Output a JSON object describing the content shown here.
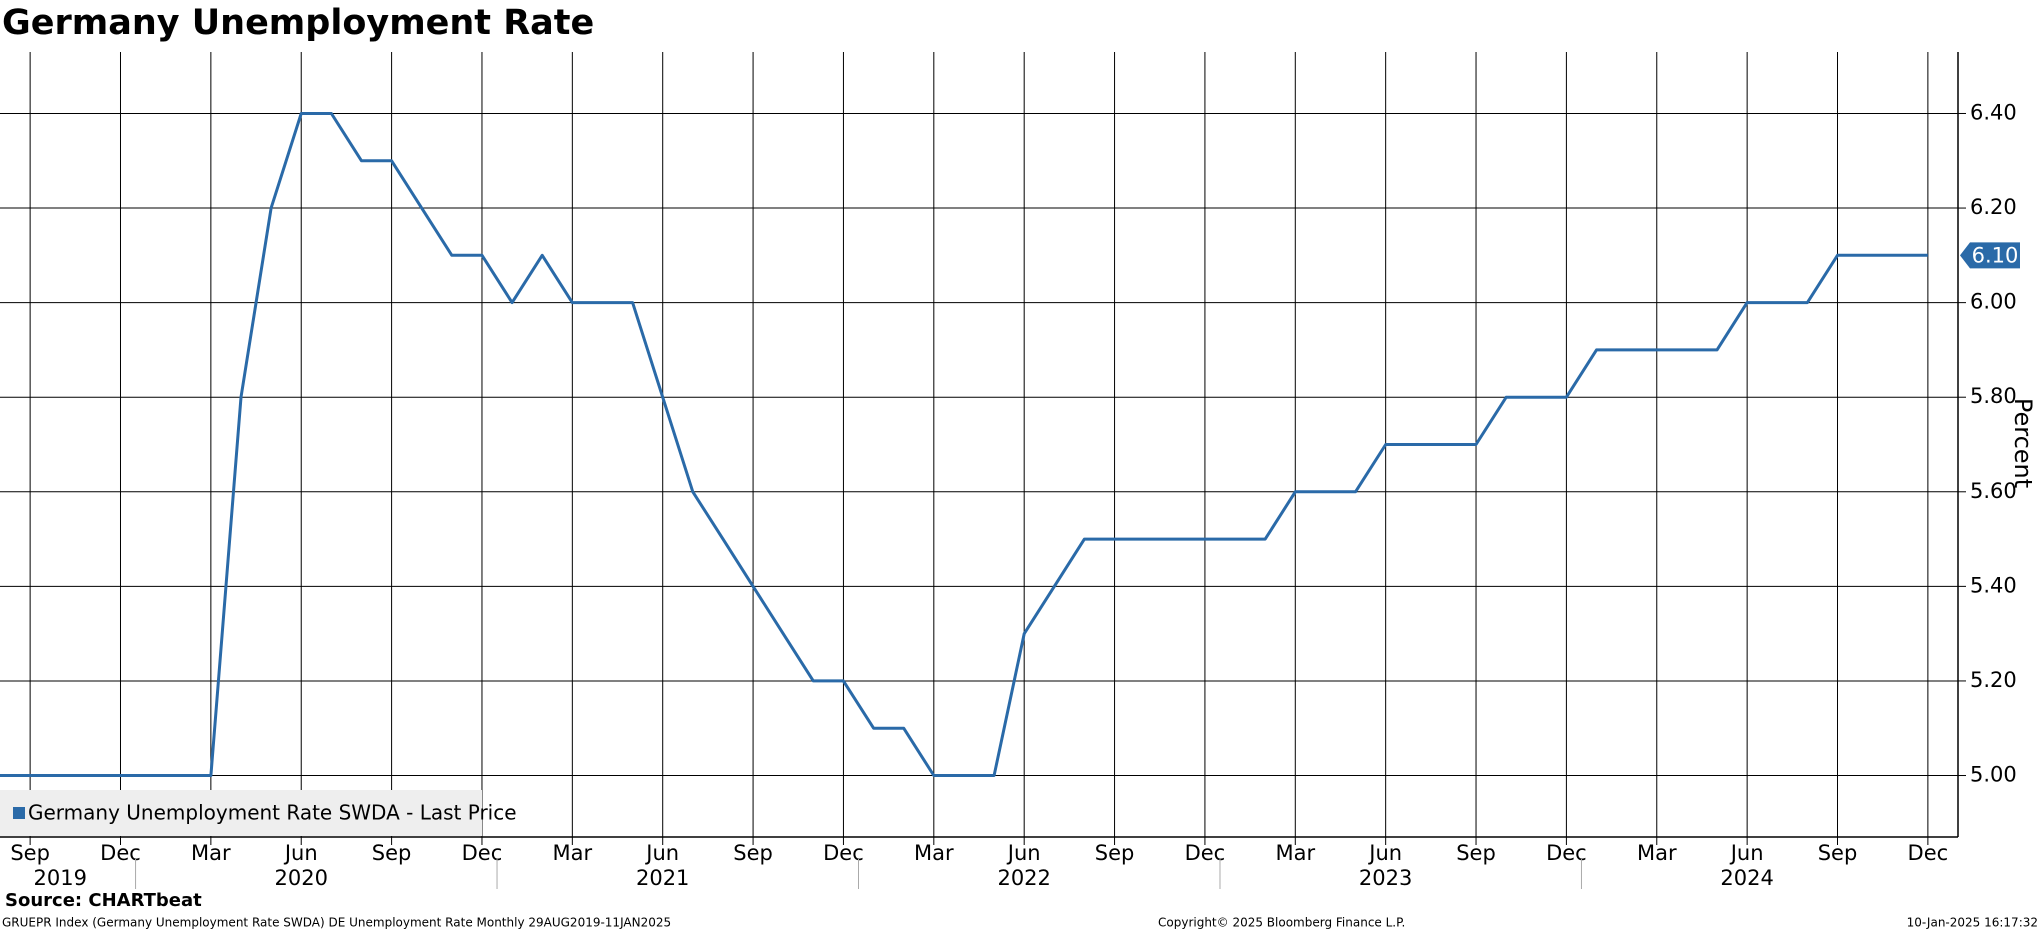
{
  "chart_data": {
    "type": "line",
    "title": "Germany Unemployment Rate",
    "y_axis_label": "Percent",
    "x": [
      "2019-08",
      "2019-09",
      "2019-10",
      "2019-11",
      "2019-12",
      "2020-01",
      "2020-02",
      "2020-03",
      "2020-04",
      "2020-05",
      "2020-06",
      "2020-07",
      "2020-08",
      "2020-09",
      "2020-10",
      "2020-11",
      "2020-12",
      "2021-01",
      "2021-02",
      "2021-03",
      "2021-04",
      "2021-05",
      "2021-06",
      "2021-07",
      "2021-08",
      "2021-09",
      "2021-10",
      "2021-11",
      "2021-12",
      "2022-01",
      "2022-02",
      "2022-03",
      "2022-04",
      "2022-05",
      "2022-06",
      "2022-07",
      "2022-08",
      "2022-09",
      "2022-10",
      "2022-11",
      "2022-12",
      "2023-01",
      "2023-02",
      "2023-03",
      "2023-04",
      "2023-05",
      "2023-06",
      "2023-07",
      "2023-08",
      "2023-09",
      "2023-10",
      "2023-11",
      "2023-12",
      "2024-01",
      "2024-02",
      "2024-03",
      "2024-04",
      "2024-05",
      "2024-06",
      "2024-07",
      "2024-08",
      "2024-09",
      "2024-10",
      "2024-11",
      "2024-12"
    ],
    "series": [
      {
        "name": "Germany Unemployment Rate SWDA - Last Price",
        "color": "#2a6aa8",
        "values": [
          5.0,
          5.0,
          5.0,
          5.0,
          5.0,
          5.0,
          5.0,
          5.0,
          5.8,
          6.2,
          6.4,
          6.4,
          6.3,
          6.3,
          6.2,
          6.1,
          6.1,
          6.0,
          6.1,
          6.0,
          6.0,
          6.0,
          5.8,
          5.6,
          5.5,
          5.4,
          5.3,
          5.2,
          5.2,
          5.1,
          5.1,
          5.0,
          5.0,
          5.0,
          5.3,
          5.4,
          5.5,
          5.5,
          5.5,
          5.5,
          5.5,
          5.5,
          5.5,
          5.6,
          5.6,
          5.6,
          5.7,
          5.7,
          5.7,
          5.7,
          5.8,
          5.8,
          5.8,
          5.9,
          5.9,
          5.9,
          5.9,
          5.9,
          6.0,
          6.0,
          6.0,
          6.1,
          6.1,
          6.1,
          6.1
        ]
      }
    ],
    "last_price_label": "6.10",
    "xlim": [
      "2019-08",
      "2025-01"
    ],
    "ylim": [
      4.87,
      6.53
    ],
    "xticks": [
      {
        "value": "2019-09",
        "label": "Sep"
      },
      {
        "value": "2019-12",
        "label": "Dec"
      },
      {
        "value": "2020-03",
        "label": "Mar"
      },
      {
        "value": "2020-06",
        "label": "Jun"
      },
      {
        "value": "2020-09",
        "label": "Sep"
      },
      {
        "value": "2020-12",
        "label": "Dec"
      },
      {
        "value": "2021-03",
        "label": "Mar"
      },
      {
        "value": "2021-06",
        "label": "Jun"
      },
      {
        "value": "2021-09",
        "label": "Sep"
      },
      {
        "value": "2021-12",
        "label": "Dec"
      },
      {
        "value": "2022-03",
        "label": "Mar"
      },
      {
        "value": "2022-06",
        "label": "Jun"
      },
      {
        "value": "2022-09",
        "label": "Sep"
      },
      {
        "value": "2022-12",
        "label": "Dec"
      },
      {
        "value": "2023-03",
        "label": "Mar"
      },
      {
        "value": "2023-06",
        "label": "Jun"
      },
      {
        "value": "2023-09",
        "label": "Sep"
      },
      {
        "value": "2023-12",
        "label": "Dec"
      },
      {
        "value": "2024-03",
        "label": "Mar"
      },
      {
        "value": "2024-06",
        "label": "Jun"
      },
      {
        "value": "2024-09",
        "label": "Sep"
      },
      {
        "value": "2024-12",
        "label": "Dec"
      }
    ],
    "year_labels": [
      {
        "value": "2019-10",
        "label": "2019"
      },
      {
        "value": "2020-06",
        "label": "2020"
      },
      {
        "value": "2021-06",
        "label": "2021"
      },
      {
        "value": "2022-06",
        "label": "2022"
      },
      {
        "value": "2023-06",
        "label": "2023"
      },
      {
        "value": "2024-06",
        "label": "2024"
      }
    ],
    "yticks": [
      {
        "value": 5.0,
        "label": "5.00"
      },
      {
        "value": 5.2,
        "label": "5.20"
      },
      {
        "value": 5.4,
        "label": "5.40"
      },
      {
        "value": 5.6,
        "label": "5.60"
      },
      {
        "value": 5.8,
        "label": "5.80"
      },
      {
        "value": 6.0,
        "label": "6.00"
      },
      {
        "value": 6.2,
        "label": "6.20"
      },
      {
        "value": 6.4,
        "label": "6.40"
      }
    ],
    "grid": true,
    "legend": "bottom-left",
    "source": "Source: CHARTbeat",
    "footer_left": "GRUEPR Index (Germany Unemployment Rate SWDA) DE Unemployment Rate  Monthly 29AUG2019-11JAN2025",
    "footer_center": "Copyright© 2025 Bloomberg Finance L.P.",
    "footer_right": "10-Jan-2025 16:17:32"
  }
}
